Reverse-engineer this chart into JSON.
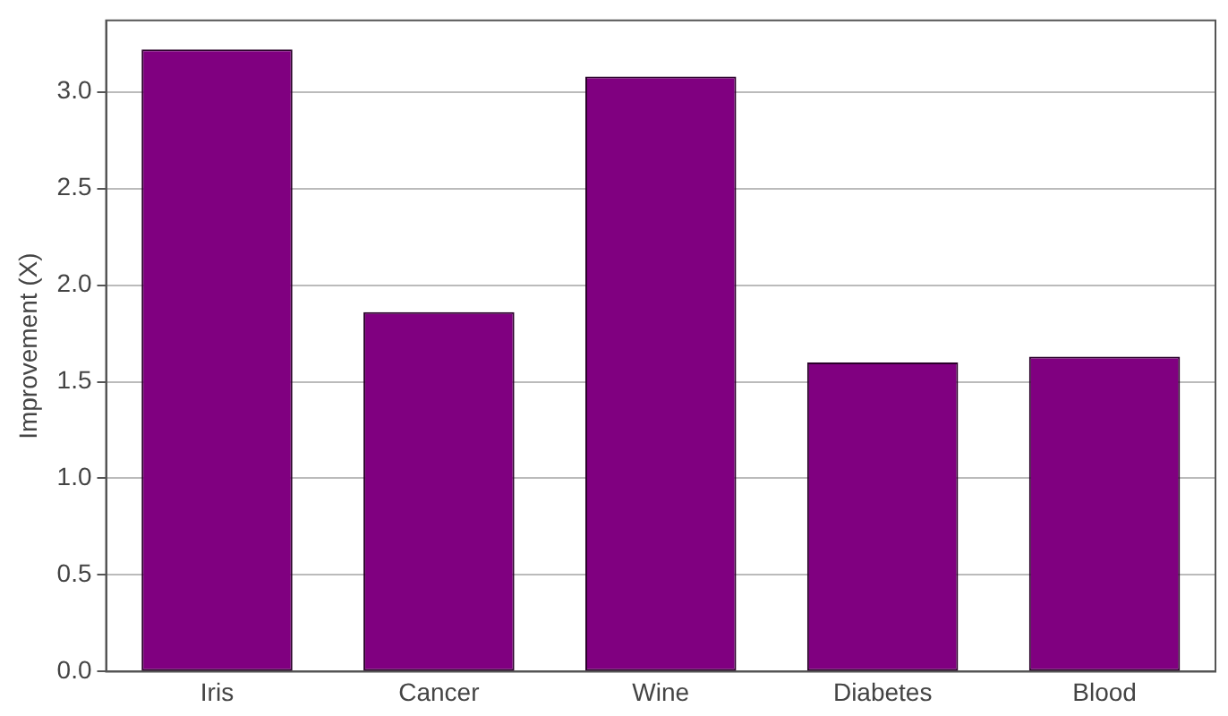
{
  "chart_data": {
    "type": "bar",
    "ylabel": "Improvement (X)",
    "categories": [
      "Iris",
      "Cancer",
      "Wine",
      "Diabetes",
      "Blood"
    ],
    "values": [
      3.22,
      1.86,
      3.08,
      1.6,
      1.63
    ],
    "color": "#800080",
    "ylim": [
      0,
      3.37
    ],
    "yticks": [
      {
        "value": 0,
        "label": "0.0"
      },
      {
        "value": 0.5,
        "label": "0.5"
      },
      {
        "value": 1,
        "label": "1.0"
      },
      {
        "value": 1.5,
        "label": "1.5"
      },
      {
        "value": 2,
        "label": "2.0"
      },
      {
        "value": 2.5,
        "label": "2.5"
      },
      {
        "value": 3,
        "label": "3.0"
      }
    ],
    "grid": "y",
    "legend": false
  }
}
